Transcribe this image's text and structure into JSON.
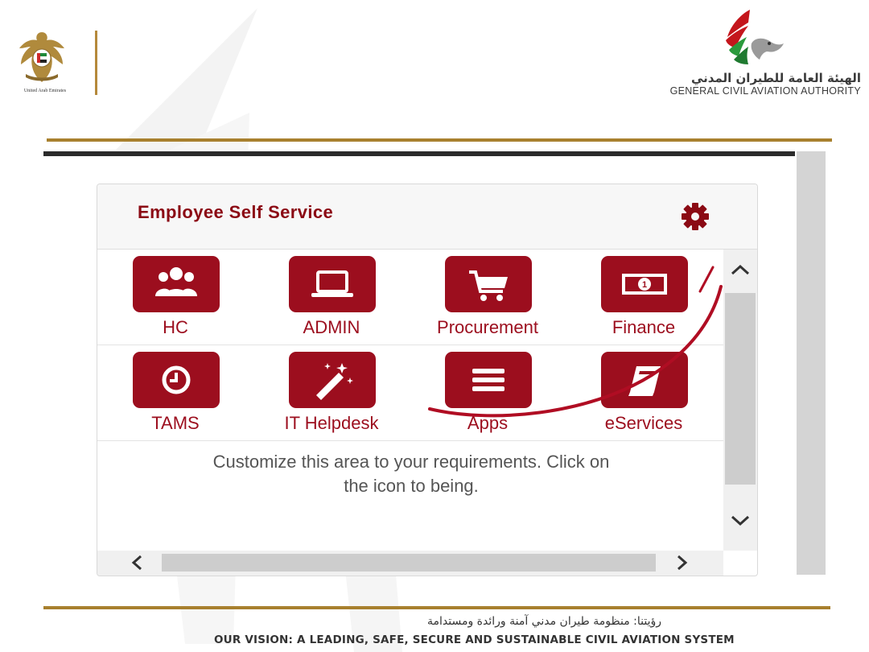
{
  "header": {
    "uae_caption": "United Arab Emirates",
    "gcaa_name_ar": "الهيئة العامة للطيران المدني",
    "gcaa_name_en": "GENERAL CIVIL AVIATION AUTHORITY"
  },
  "panel": {
    "title": "Employee Self Service",
    "settings_icon": "gear-icon",
    "tiles": [
      {
        "label": "HC",
        "icon": "users-icon"
      },
      {
        "label": "ADMIN",
        "icon": "laptop-icon"
      },
      {
        "label": "Procurement",
        "icon": "cart-icon"
      },
      {
        "label": "Finance",
        "icon": "money-icon"
      },
      {
        "label": "TAMS",
        "icon": "clock-icon"
      },
      {
        "label": "IT Helpdesk",
        "icon": "magic-wand-icon"
      },
      {
        "label": "Apps",
        "icon": "menu-icon"
      },
      {
        "label": "eServices",
        "icon": "book-icon"
      }
    ],
    "customize_text": "Customize this area to your requirements. Click on the icon to being."
  },
  "footer": {
    "vision_ar": "رؤيتنا: منظومة طيران مدني آمنة ورائدة ومستدامة",
    "vision_en": "OUR VISION: A LEADING, SAFE, SECURE AND SUSTAINABLE CIVIL AVIATION SYSTEM"
  },
  "colors": {
    "tile_red": "#9c0e1e",
    "title_red": "#8b0a14",
    "gold": "#a8802e",
    "annotation_red": "#b00d23"
  }
}
